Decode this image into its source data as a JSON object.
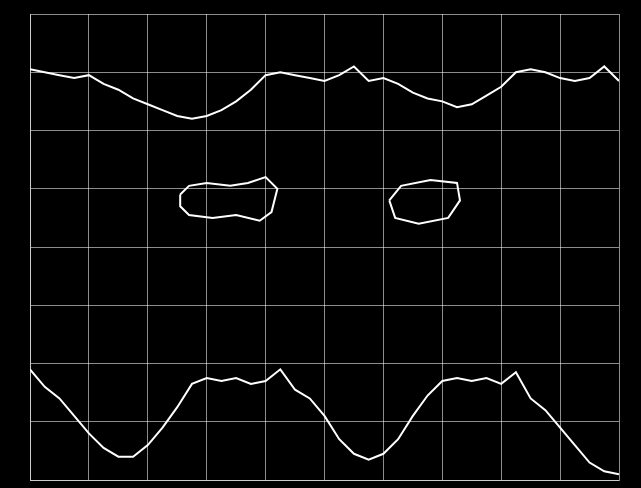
{
  "chart_data": {
    "type": "line",
    "xlim": [
      0,
      10
    ],
    "xticks": [
      0,
      1,
      2,
      3,
      4,
      5,
      6,
      7,
      8,
      9,
      10
    ],
    "ylim": [
      -4,
      4
    ],
    "yticks": [
      -4,
      -3,
      -2,
      -1,
      0,
      1,
      2,
      3,
      4
    ],
    "grid": true,
    "tick_labels": false,
    "series": [
      {
        "color": "#ffffff",
        "line_style": "solid",
        "x": [
          0,
          0.25,
          0.5,
          0.75,
          1,
          1.25,
          1.5,
          1.75,
          2,
          2.25,
          2.5,
          2.75,
          3,
          3.25,
          3.5,
          3.75,
          4,
          4.25,
          4.5,
          4.75,
          5,
          5.25,
          5.5,
          5.75,
          6,
          6.25,
          6.5,
          6.75,
          7,
          7.25,
          7.5,
          7.75,
          8,
          8.25,
          8.5,
          8.75,
          9,
          9.25,
          9.5,
          9.75,
          10
        ],
        "values": [
          3.05,
          3.0,
          2.95,
          2.9,
          2.95,
          2.8,
          2.7,
          2.55,
          2.45,
          2.35,
          2.25,
          2.2,
          2.25,
          2.35,
          2.5,
          2.7,
          2.95,
          3.0,
          2.95,
          2.9,
          2.85,
          2.95,
          3.1,
          2.85,
          2.9,
          2.8,
          2.65,
          2.55,
          2.5,
          2.4,
          2.45,
          2.6,
          2.75,
          3.0,
          3.05,
          3.0,
          2.9,
          2.85,
          2.9,
          3.1,
          2.85
        ]
      },
      {
        "color": "#ffffff",
        "line_style": "solid",
        "x": [
          0,
          0.25,
          0.5,
          0.75,
          1,
          1.25,
          1.5,
          1.75,
          2,
          2.25,
          2.5,
          2.75,
          3,
          3.25,
          3.5,
          3.75,
          4,
          4.25,
          4.5,
          4.75,
          5,
          5.25,
          5.5,
          5.75,
          6,
          6.25,
          6.5,
          6.75,
          7,
          7.25,
          7.5,
          7.75,
          8,
          8.25,
          8.5,
          8.75,
          9,
          9.25,
          9.5,
          9.75,
          10
        ],
        "values": [
          -2.1,
          -2.4,
          -2.6,
          -2.9,
          -3.2,
          -3.45,
          -3.6,
          -3.6,
          -3.4,
          -3.1,
          -2.75,
          -2.35,
          -2.25,
          -2.3,
          -2.25,
          -2.35,
          -2.3,
          -2.1,
          -2.45,
          -2.6,
          -2.9,
          -3.3,
          -3.55,
          -3.65,
          -3.55,
          -3.3,
          -2.9,
          -2.55,
          -2.3,
          -2.25,
          -2.3,
          -2.25,
          -2.35,
          -2.15,
          -2.6,
          -2.8,
          -3.1,
          -3.4,
          -3.7,
          -3.85,
          -3.9
        ]
      },
      {
        "color": "#ffffff",
        "line_style": "solid",
        "x": [
          2.55,
          2.7,
          3.0,
          3.4,
          3.7,
          4.0,
          4.2,
          4.1,
          3.9,
          3.5,
          3.1,
          2.7,
          2.55,
          2.55
        ],
        "values": [
          0.9,
          1.05,
          1.1,
          1.05,
          1.1,
          1.2,
          1.0,
          0.6,
          0.45,
          0.55,
          0.5,
          0.55,
          0.7,
          0.9
        ]
      },
      {
        "color": "#ffffff",
        "line_style": "solid",
        "x": [
          6.1,
          6.3,
          6.8,
          7.25,
          7.3,
          7.1,
          6.6,
          6.2,
          6.1
        ],
        "values": [
          0.8,
          1.05,
          1.15,
          1.1,
          0.8,
          0.5,
          0.4,
          0.5,
          0.8
        ]
      }
    ]
  }
}
